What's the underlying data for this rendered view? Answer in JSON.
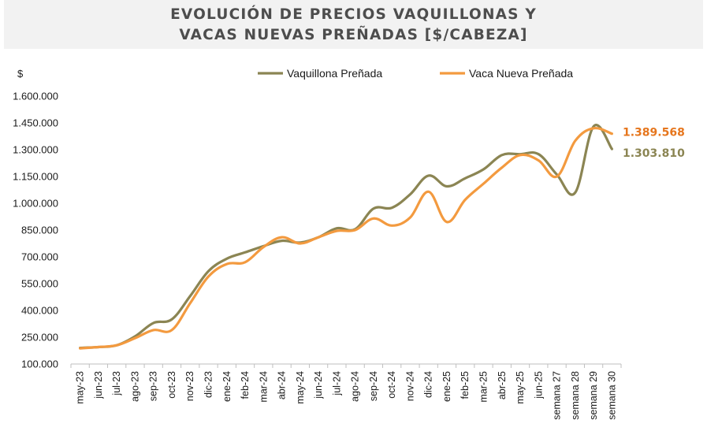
{
  "chart_data": {
    "type": "line",
    "title": "EVOLUCIÓN DE PRECIOS VAQUILLONAS Y VACAS NUEVAS PREÑADAS [$/CABEZA]",
    "title_lines": [
      "EVOLUCIÓN DE PRECIOS VAQUILLONAS Y",
      "VACAS NUEVAS PREÑADAS [$/CABEZA]"
    ],
    "ylabel": "$",
    "xlabel": "",
    "ylim": [
      100000,
      1600000
    ],
    "y_ticks": [
      100000,
      250000,
      400000,
      550000,
      700000,
      850000,
      1000000,
      1150000,
      1300000,
      1450000,
      1600000
    ],
    "y_tick_labels": [
      "100.000",
      "250.000",
      "400.000",
      "550.000",
      "700.000",
      "850.000",
      "1.000.000",
      "1.150.000",
      "1.300.000",
      "1.450.000",
      "1.600.000"
    ],
    "legend_position": "top",
    "grid": false,
    "categories": [
      "may-23",
      "jun-23",
      "jul-23",
      "ago-23",
      "sep-23",
      "oct-23",
      "nov-23",
      "dic-23",
      "ene-24",
      "feb-24",
      "mar-24",
      "abr-24",
      "may-24",
      "jun-24",
      "jul-24",
      "ago-24",
      "sep-24",
      "oct-24",
      "nov-24",
      "dic-24",
      "ene-25",
      "feb-25",
      "mar-25",
      "abr-25",
      "may-25",
      "jun-25",
      "semana 27",
      "semana 28",
      "semana 29",
      "semana 30"
    ],
    "series": [
      {
        "name": "Vaquillona Preñada",
        "color": "#8b8553",
        "end_label": "1.303.810",
        "values": [
          190000,
          195000,
          205000,
          255000,
          330000,
          350000,
          480000,
          620000,
          690000,
          725000,
          760000,
          790000,
          780000,
          810000,
          860000,
          855000,
          970000,
          975000,
          1050000,
          1155000,
          1095000,
          1140000,
          1190000,
          1270000,
          1275000,
          1275000,
          1160000,
          1060000,
          1430000,
          1303810
        ]
      },
      {
        "name": "Vaca Nueva Preñada",
        "color": "#f39a3f",
        "end_label": "1.389.568",
        "values": [
          188000,
          195000,
          205000,
          245000,
          290000,
          290000,
          440000,
          590000,
          660000,
          670000,
          755000,
          810000,
          775000,
          810000,
          845000,
          850000,
          915000,
          875000,
          920000,
          1065000,
          895000,
          1020000,
          1110000,
          1200000,
          1270000,
          1240000,
          1150000,
          1350000,
          1420000,
          1389568
        ]
      }
    ]
  }
}
